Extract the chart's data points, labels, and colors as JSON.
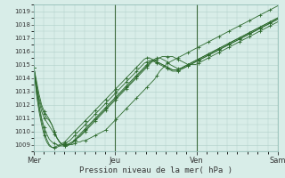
{
  "xlabel": "Pression niveau de la mer( hPa )",
  "ylim": [
    1008.5,
    1019.5
  ],
  "yticks": [
    1009,
    1010,
    1011,
    1012,
    1013,
    1014,
    1015,
    1016,
    1017,
    1018,
    1019
  ],
  "xtick_labels": [
    "Mer",
    "Jeu",
    "Ven",
    "Sam"
  ],
  "xtick_positions": [
    0,
    48,
    96,
    144
  ],
  "background_color": "#d8ede8",
  "grid_color": "#b0d0c8",
  "line_color": "#2d6a2d",
  "curves": [
    [
      1014.8,
      1013.8,
      1012.8,
      1012.0,
      1011.5,
      1011.2,
      1010.9,
      1010.5,
      1010.0,
      1009.5,
      1009.2,
      1009.0,
      1009.0,
      1009.0,
      1009.0,
      1009.0,
      1009.1,
      1009.2,
      1009.2,
      1009.3,
      1009.3,
      1009.4,
      1009.5,
      1009.6,
      1009.7,
      1009.8,
      1009.9,
      1010.0,
      1010.1,
      1010.3,
      1010.5,
      1010.7,
      1010.9,
      1011.1,
      1011.3,
      1011.5,
      1011.7,
      1011.9,
      1012.1,
      1012.3,
      1012.5,
      1012.7,
      1012.9,
      1013.1,
      1013.3,
      1013.5,
      1013.7,
      1013.9,
      1014.2,
      1014.5,
      1014.7,
      1014.9,
      1015.1,
      1015.2,
      1015.3,
      1015.4,
      1015.5,
      1015.6,
      1015.7,
      1015.8,
      1015.9,
      1016.0,
      1016.1,
      1016.2,
      1016.3,
      1016.4,
      1016.5,
      1016.6,
      1016.7,
      1016.8,
      1016.9,
      1017.0,
      1017.1,
      1017.2,
      1017.3,
      1017.4,
      1017.5,
      1017.6,
      1017.7,
      1017.8,
      1017.9,
      1018.0,
      1018.1,
      1018.2,
      1018.3,
      1018.4,
      1018.5,
      1018.6,
      1018.7,
      1018.8,
      1018.9,
      1019.0,
      1019.1,
      1019.2,
      1019.3,
      1019.4
    ],
    [
      1014.8,
      1013.5,
      1012.5,
      1011.8,
      1011.3,
      1011.0,
      1010.8,
      1010.5,
      1010.0,
      1009.5,
      1009.2,
      1009.0,
      1009.0,
      1009.0,
      1009.1,
      1009.2,
      1009.3,
      1009.5,
      1009.6,
      1009.8,
      1010.0,
      1010.2,
      1010.4,
      1010.6,
      1010.8,
      1011.0,
      1011.2,
      1011.4,
      1011.6,
      1011.8,
      1012.0,
      1012.2,
      1012.4,
      1012.6,
      1012.8,
      1013.0,
      1013.2,
      1013.4,
      1013.6,
      1013.8,
      1014.0,
      1014.2,
      1014.4,
      1014.6,
      1014.8,
      1015.0,
      1015.2,
      1015.3,
      1015.4,
      1015.5,
      1015.6,
      1015.6,
      1015.6,
      1015.6,
      1015.6,
      1015.5,
      1015.4,
      1015.3,
      1015.2,
      1015.1,
      1015.0,
      1015.0,
      1015.0,
      1015.0,
      1015.1,
      1015.2,
      1015.3,
      1015.4,
      1015.5,
      1015.6,
      1015.7,
      1015.8,
      1015.9,
      1016.0,
      1016.1,
      1016.2,
      1016.3,
      1016.4,
      1016.5,
      1016.6,
      1016.7,
      1016.8,
      1016.9,
      1017.0,
      1017.1,
      1017.2,
      1017.3,
      1017.4,
      1017.5,
      1017.6,
      1017.7,
      1017.8,
      1017.9,
      1018.0,
      1018.1,
      1018.2
    ],
    [
      1014.8,
      1013.5,
      1012.3,
      1011.5,
      1011.0,
      1010.7,
      1010.4,
      1010.1,
      1009.8,
      1009.5,
      1009.2,
      1009.0,
      1008.9,
      1008.9,
      1009.0,
      1009.1,
      1009.3,
      1009.5,
      1009.7,
      1009.9,
      1010.1,
      1010.3,
      1010.5,
      1010.7,
      1010.9,
      1011.1,
      1011.3,
      1011.5,
      1011.7,
      1011.9,
      1012.1,
      1012.3,
      1012.5,
      1012.7,
      1012.9,
      1013.1,
      1013.3,
      1013.5,
      1013.7,
      1013.9,
      1014.1,
      1014.3,
      1014.5,
      1014.7,
      1014.9,
      1015.1,
      1015.3,
      1015.4,
      1015.5,
      1015.5,
      1015.4,
      1015.3,
      1015.2,
      1015.0,
      1014.9,
      1014.8,
      1014.7,
      1014.7,
      1014.7,
      1014.8,
      1014.9,
      1015.0,
      1015.1,
      1015.2,
      1015.3,
      1015.4,
      1015.5,
      1015.6,
      1015.7,
      1015.8,
      1015.9,
      1016.0,
      1016.1,
      1016.2,
      1016.3,
      1016.4,
      1016.5,
      1016.6,
      1016.7,
      1016.8,
      1016.9,
      1017.0,
      1017.1,
      1017.2,
      1017.3,
      1017.4,
      1017.5,
      1017.6,
      1017.7,
      1017.8,
      1017.9,
      1018.0,
      1018.1,
      1018.2,
      1018.3,
      1018.4
    ],
    [
      1014.8,
      1013.2,
      1012.0,
      1011.0,
      1010.3,
      1009.8,
      1009.4,
      1009.2,
      1009.1,
      1009.0,
      1008.9,
      1008.9,
      1008.9,
      1009.0,
      1009.1,
      1009.2,
      1009.4,
      1009.6,
      1009.8,
      1010.0,
      1010.2,
      1010.4,
      1010.6,
      1010.8,
      1011.0,
      1011.2,
      1011.4,
      1011.6,
      1011.8,
      1012.0,
      1012.2,
      1012.4,
      1012.6,
      1012.8,
      1013.0,
      1013.2,
      1013.4,
      1013.6,
      1013.8,
      1014.0,
      1014.2,
      1014.4,
      1014.6,
      1014.8,
      1015.0,
      1015.2,
      1015.3,
      1015.3,
      1015.2,
      1015.1,
      1015.0,
      1014.9,
      1014.8,
      1014.7,
      1014.6,
      1014.6,
      1014.6,
      1014.7,
      1014.8,
      1014.9,
      1015.0,
      1015.1,
      1015.2,
      1015.3,
      1015.4,
      1015.5,
      1015.6,
      1015.7,
      1015.8,
      1015.9,
      1016.0,
      1016.1,
      1016.2,
      1016.3,
      1016.4,
      1016.5,
      1016.6,
      1016.7,
      1016.8,
      1016.9,
      1017.0,
      1017.1,
      1017.2,
      1017.3,
      1017.4,
      1017.5,
      1017.6,
      1017.7,
      1017.8,
      1017.9,
      1018.0,
      1018.1,
      1018.2,
      1018.3,
      1018.4,
      1018.5
    ],
    [
      1014.8,
      1013.0,
      1011.8,
      1010.8,
      1010.0,
      1009.4,
      1009.0,
      1008.8,
      1008.8,
      1008.8,
      1008.9,
      1009.0,
      1009.1,
      1009.2,
      1009.3,
      1009.5,
      1009.7,
      1009.9,
      1010.1,
      1010.3,
      1010.5,
      1010.7,
      1010.9,
      1011.1,
      1011.3,
      1011.5,
      1011.7,
      1011.9,
      1012.1,
      1012.3,
      1012.5,
      1012.7,
      1012.9,
      1013.1,
      1013.3,
      1013.5,
      1013.7,
      1013.9,
      1014.1,
      1014.3,
      1014.5,
      1014.7,
      1014.9,
      1015.1,
      1015.2,
      1015.3,
      1015.3,
      1015.2,
      1015.1,
      1015.0,
      1014.9,
      1014.8,
      1014.7,
      1014.6,
      1014.5,
      1014.5,
      1014.5,
      1014.6,
      1014.7,
      1014.8,
      1014.9,
      1015.0,
      1015.1,
      1015.2,
      1015.3,
      1015.4,
      1015.5,
      1015.6,
      1015.7,
      1015.8,
      1015.9,
      1016.0,
      1016.1,
      1016.2,
      1016.3,
      1016.4,
      1016.5,
      1016.6,
      1016.7,
      1016.8,
      1016.9,
      1017.0,
      1017.1,
      1017.2,
      1017.3,
      1017.4,
      1017.5,
      1017.6,
      1017.7,
      1017.8,
      1017.9,
      1018.0,
      1018.1,
      1018.2,
      1018.3,
      1018.4
    ],
    [
      1014.8,
      1012.8,
      1011.5,
      1010.5,
      1009.7,
      1009.2,
      1008.9,
      1008.8,
      1008.8,
      1008.9,
      1009.0,
      1009.1,
      1009.2,
      1009.4,
      1009.6,
      1009.8,
      1010.0,
      1010.2,
      1010.4,
      1010.6,
      1010.8,
      1011.0,
      1011.2,
      1011.4,
      1011.6,
      1011.8,
      1012.0,
      1012.2,
      1012.4,
      1012.6,
      1012.8,
      1013.0,
      1013.2,
      1013.4,
      1013.6,
      1013.8,
      1014.0,
      1014.2,
      1014.4,
      1014.6,
      1014.8,
      1015.0,
      1015.2,
      1015.4,
      1015.5,
      1015.5,
      1015.4,
      1015.3,
      1015.2,
      1015.1,
      1015.0,
      1014.9,
      1014.8,
      1014.7,
      1014.6,
      1014.6,
      1014.6,
      1014.7,
      1014.8,
      1014.9,
      1015.0,
      1015.1,
      1015.2,
      1015.3,
      1015.4,
      1015.5,
      1015.6,
      1015.7,
      1015.8,
      1015.9,
      1016.0,
      1016.1,
      1016.2,
      1016.3,
      1016.4,
      1016.5,
      1016.6,
      1016.7,
      1016.8,
      1016.9,
      1017.0,
      1017.1,
      1017.2,
      1017.3,
      1017.4,
      1017.5,
      1017.6,
      1017.7,
      1017.8,
      1017.9,
      1018.0,
      1018.1,
      1018.2,
      1018.3,
      1018.4,
      1018.5
    ]
  ]
}
